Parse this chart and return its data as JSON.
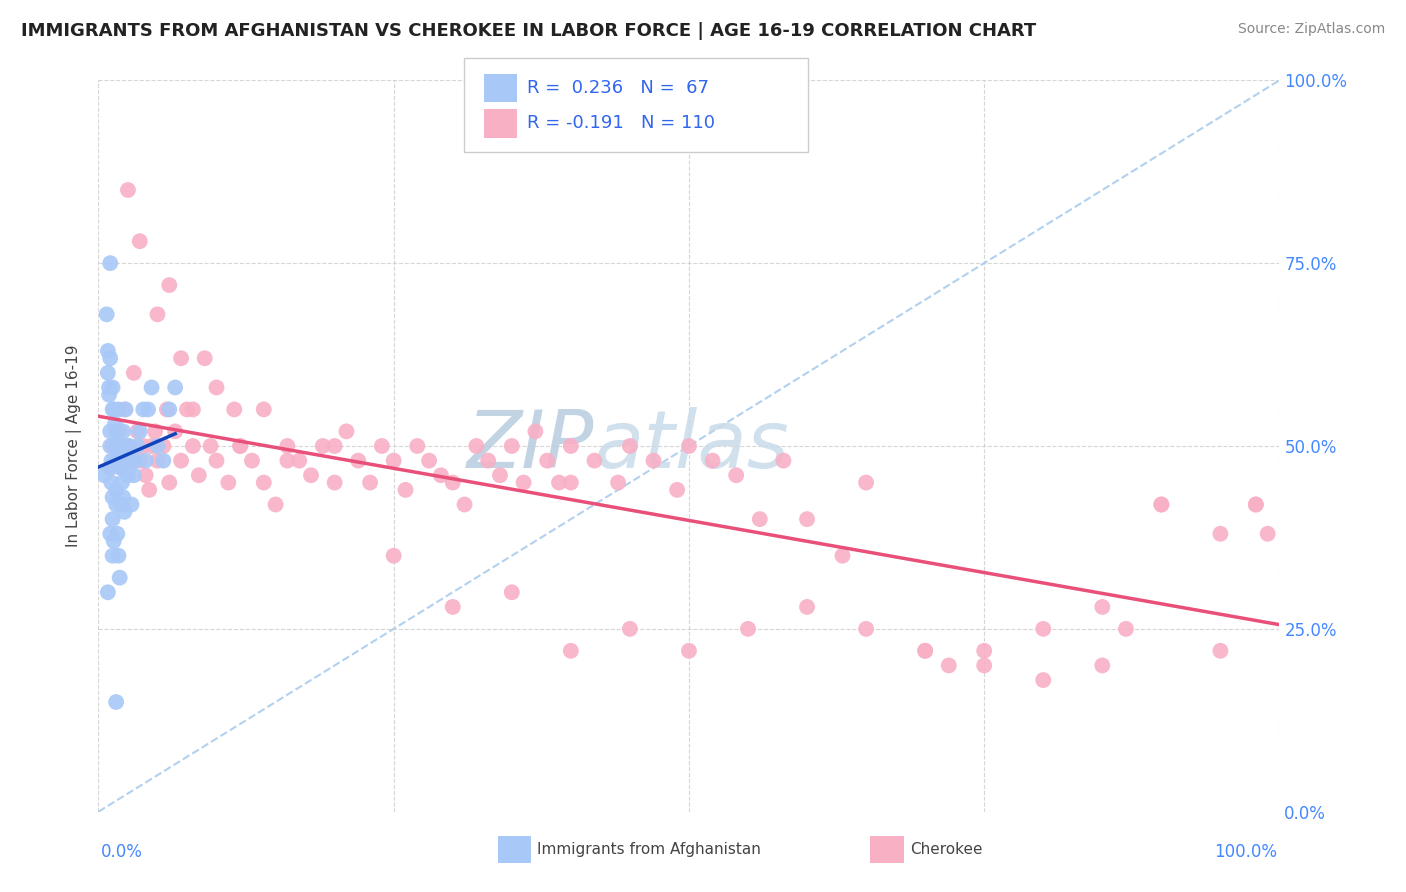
{
  "title": "IMMIGRANTS FROM AFGHANISTAN VS CHEROKEE IN LABOR FORCE | AGE 16-19 CORRELATION CHART",
  "source": "Source: ZipAtlas.com",
  "ylabel": "In Labor Force | Age 16-19",
  "ytick_labels": [
    "0.0%",
    "25.0%",
    "50.0%",
    "75.0%",
    "100.0%"
  ],
  "ytick_values": [
    0.0,
    0.25,
    0.5,
    0.75,
    1.0
  ],
  "xtick_values": [
    0.0,
    0.25,
    0.5,
    0.75,
    1.0
  ],
  "xlim": [
    0.0,
    1.0
  ],
  "ylim": [
    0.0,
    1.0
  ],
  "afghanistan_R": 0.236,
  "afghanistan_N": 67,
  "cherokee_R": -0.191,
  "cherokee_N": 110,
  "afghanistan_color": "#a8c8f8",
  "afghanistan_edge_color": "#7aaae8",
  "afghanistan_line_color": "#1144bb",
  "cherokee_color": "#f8b0c5",
  "cherokee_edge_color": "#e890aa",
  "cherokee_line_color": "#e8507a",
  "ref_line_color": "#aaccee",
  "title_color": "#222222",
  "grid_color": "#cccccc",
  "background_color": "#ffffff",
  "watermark_text": "ZIPatlas",
  "watermark_color": "#d0dff0",
  "legend_border_color": "#cccccc",
  "afghanistan_x": [
    0.005,
    0.007,
    0.008,
    0.009,
    0.01,
    0.01,
    0.01,
    0.01,
    0.01,
    0.011,
    0.011,
    0.012,
    0.012,
    0.012,
    0.013,
    0.013,
    0.014,
    0.014,
    0.015,
    0.015,
    0.015,
    0.016,
    0.016,
    0.017,
    0.017,
    0.018,
    0.018,
    0.019,
    0.019,
    0.02,
    0.02,
    0.02,
    0.021,
    0.021,
    0.022,
    0.022,
    0.023,
    0.023,
    0.024,
    0.025,
    0.025,
    0.026,
    0.027,
    0.028,
    0.03,
    0.031,
    0.033,
    0.035,
    0.038,
    0.04,
    0.042,
    0.045,
    0.05,
    0.055,
    0.06,
    0.065,
    0.008,
    0.009,
    0.012,
    0.015,
    0.018,
    0.02,
    0.025,
    0.008,
    0.01,
    0.012,
    0.015
  ],
  "afghanistan_y": [
    0.46,
    0.68,
    0.63,
    0.57,
    0.62,
    0.52,
    0.5,
    0.47,
    0.75,
    0.48,
    0.45,
    0.43,
    0.58,
    0.4,
    0.55,
    0.37,
    0.53,
    0.48,
    0.5,
    0.44,
    0.42,
    0.52,
    0.38,
    0.55,
    0.35,
    0.5,
    0.32,
    0.47,
    0.48,
    0.48,
    0.45,
    0.47,
    0.52,
    0.43,
    0.47,
    0.41,
    0.5,
    0.55,
    0.48,
    0.47,
    0.46,
    0.5,
    0.48,
    0.42,
    0.46,
    0.48,
    0.5,
    0.52,
    0.55,
    0.48,
    0.55,
    0.58,
    0.5,
    0.48,
    0.55,
    0.58,
    0.6,
    0.58,
    0.55,
    0.52,
    0.48,
    0.42,
    0.5,
    0.3,
    0.38,
    0.35,
    0.15
  ],
  "cherokee_x": [
    0.01,
    0.012,
    0.015,
    0.018,
    0.02,
    0.022,
    0.025,
    0.028,
    0.03,
    0.033,
    0.035,
    0.038,
    0.04,
    0.043,
    0.045,
    0.048,
    0.05,
    0.055,
    0.058,
    0.06,
    0.065,
    0.07,
    0.075,
    0.08,
    0.085,
    0.09,
    0.095,
    0.1,
    0.11,
    0.115,
    0.12,
    0.13,
    0.14,
    0.15,
    0.16,
    0.17,
    0.18,
    0.19,
    0.2,
    0.21,
    0.22,
    0.23,
    0.24,
    0.25,
    0.26,
    0.27,
    0.28,
    0.29,
    0.3,
    0.31,
    0.32,
    0.33,
    0.34,
    0.35,
    0.36,
    0.37,
    0.38,
    0.39,
    0.4,
    0.42,
    0.44,
    0.45,
    0.47,
    0.49,
    0.5,
    0.52,
    0.54,
    0.56,
    0.58,
    0.6,
    0.63,
    0.65,
    0.7,
    0.72,
    0.75,
    0.8,
    0.85,
    0.87,
    0.9,
    0.95,
    0.98,
    0.025,
    0.035,
    0.05,
    0.06,
    0.07,
    0.08,
    0.1,
    0.12,
    0.14,
    0.16,
    0.2,
    0.25,
    0.3,
    0.35,
    0.4,
    0.45,
    0.5,
    0.4,
    0.55,
    0.6,
    0.65,
    0.7,
    0.75,
    0.8,
    0.85,
    0.9,
    0.95,
    0.98,
    0.99
  ],
  "cherokee_y": [
    0.47,
    0.5,
    0.48,
    0.52,
    0.47,
    0.55,
    0.5,
    0.48,
    0.6,
    0.52,
    0.48,
    0.5,
    0.46,
    0.44,
    0.5,
    0.52,
    0.48,
    0.5,
    0.55,
    0.45,
    0.52,
    0.48,
    0.55,
    0.5,
    0.46,
    0.62,
    0.5,
    0.48,
    0.45,
    0.55,
    0.5,
    0.48,
    0.45,
    0.42,
    0.5,
    0.48,
    0.46,
    0.5,
    0.45,
    0.52,
    0.48,
    0.45,
    0.5,
    0.48,
    0.44,
    0.5,
    0.48,
    0.46,
    0.45,
    0.42,
    0.5,
    0.48,
    0.46,
    0.5,
    0.45,
    0.52,
    0.48,
    0.45,
    0.5,
    0.48,
    0.45,
    0.5,
    0.48,
    0.44,
    0.5,
    0.48,
    0.46,
    0.4,
    0.48,
    0.4,
    0.35,
    0.45,
    0.22,
    0.2,
    0.22,
    0.25,
    0.28,
    0.25,
    0.42,
    0.38,
    0.42,
    0.85,
    0.78,
    0.68,
    0.72,
    0.62,
    0.55,
    0.58,
    0.5,
    0.55,
    0.48,
    0.5,
    0.35,
    0.28,
    0.3,
    0.45,
    0.25,
    0.22,
    0.22,
    0.25,
    0.28,
    0.25,
    0.22,
    0.2,
    0.18,
    0.2,
    0.42,
    0.22,
    0.42,
    0.38
  ]
}
